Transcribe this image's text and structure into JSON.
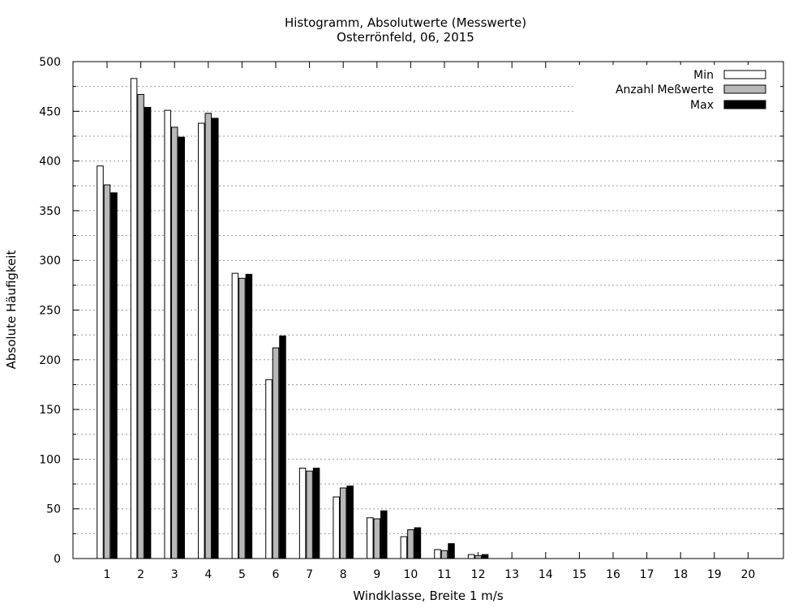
{
  "chart_data": {
    "type": "bar",
    "title": "Histogramm, Absolutwerte (Messwerte)",
    "subtitle": "Osterrönfeld, 06, 2015",
    "xlabel": "Windklasse, Breite 1 m/s",
    "ylabel": "Absolute Häufigkeit",
    "ylim": [
      0,
      500
    ],
    "yticks": [
      "0",
      "50",
      "100",
      "150",
      "200",
      "250",
      "300",
      "350",
      "400",
      "450",
      "500"
    ],
    "categories": [
      "1",
      "2",
      "3",
      "4",
      "5",
      "6",
      "7",
      "8",
      "9",
      "10",
      "11",
      "12",
      "13",
      "14",
      "15",
      "16",
      "17",
      "18",
      "19",
      "20"
    ],
    "grid": true,
    "legend_position": "top-right",
    "series": [
      {
        "name": "Min",
        "color": "#ffffff",
        "values": [
          395,
          483,
          451,
          438,
          287,
          180,
          91,
          62,
          41,
          22,
          9,
          4,
          0,
          0,
          0,
          0,
          0,
          0,
          0,
          0
        ]
      },
      {
        "name": "Anzahl Meßwerte",
        "color": "#b8b8b8",
        "values": [
          376,
          467,
          434,
          448,
          282,
          212,
          88,
          71,
          40,
          29,
          8,
          3,
          0,
          0,
          0,
          0,
          0,
          0,
          0,
          0
        ]
      },
      {
        "name": "Max",
        "color": "#000000",
        "values": [
          368,
          454,
          424,
          443,
          286,
          224,
          91,
          73,
          48,
          31,
          15,
          4,
          0,
          0,
          0,
          0,
          0,
          0,
          0,
          0
        ]
      }
    ]
  }
}
